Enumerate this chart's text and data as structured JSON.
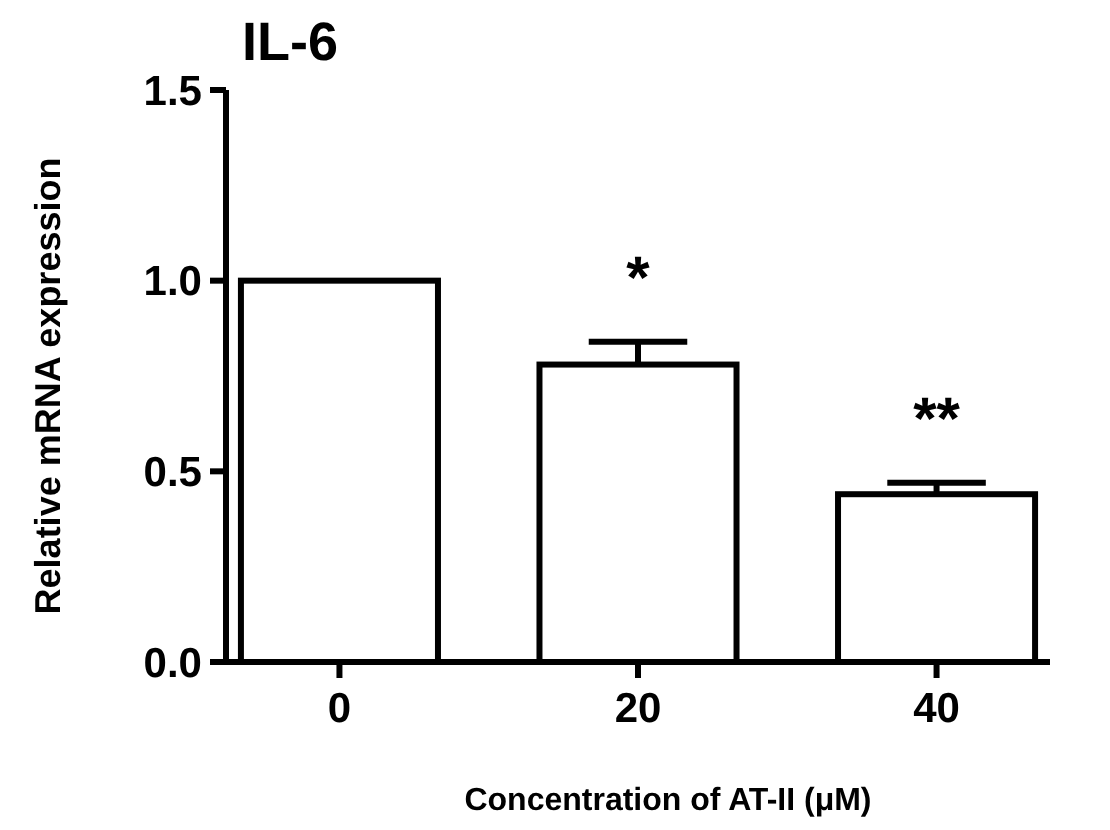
{
  "chart_data": {
    "type": "bar",
    "title": "IL-6",
    "xlabel": "Concentration of AT-II (μM)",
    "ylabel": "Relative mRNA expression",
    "categories": [
      "0",
      "20",
      "40"
    ],
    "series": [
      {
        "color": "#ffffff",
        "values": [
          1.0,
          0.78,
          0.44
        ],
        "errors": [
          null,
          [
            0.78,
            0.84
          ],
          [
            0.44,
            0.47
          ]
        ]
      }
    ],
    "ylim": [
      0,
      1.5
    ],
    "yticks": [
      {
        "value": 0,
        "label": "0.0"
      },
      {
        "value": 0.5,
        "label": "0.5"
      },
      {
        "value": 1,
        "label": "1.0"
      },
      {
        "value": 1.5,
        "label": "1.5"
      }
    ],
    "annotations": [
      "*",
      "**"
    ],
    "grid": false
  }
}
